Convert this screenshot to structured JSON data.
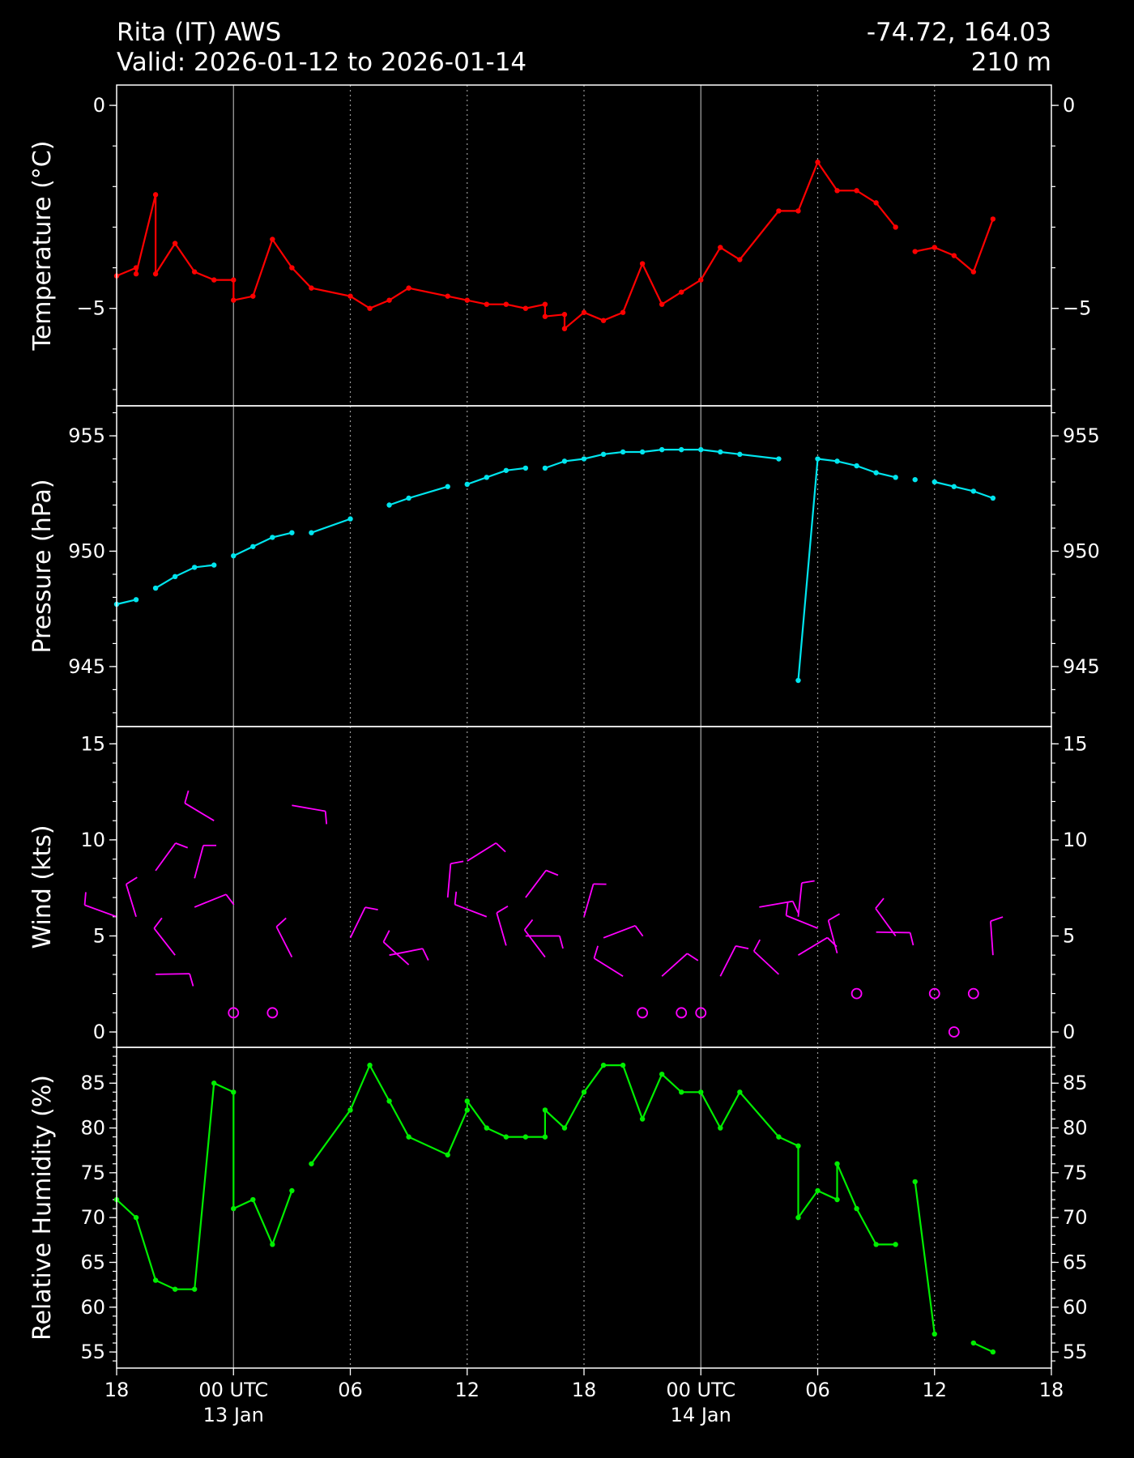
{
  "header": {
    "station": "Rita (IT) AWS",
    "valid": "Valid: 2026-01-12 to 2026-01-14",
    "coords": "-74.72, 164.03",
    "elevation": "210 m"
  },
  "colors": {
    "background": "#000000",
    "foreground": "#ffffff",
    "temperature": "#ff0000",
    "pressure": "#00e5ee",
    "wind": "#ff00ff",
    "humidity": "#00ee00",
    "solid_grid": "#aaaaaa",
    "dotted_grid": "#999999"
  },
  "chart_data": [
    {
      "id": "temperature",
      "type": "line",
      "ylabel": "Temperature ($^\\circ$C)",
      "ylim": [
        -7.4,
        0.5
      ],
      "yticks": [
        {
          "v": 0,
          "label": "0"
        },
        {
          "v": -5,
          "label": "−5"
        }
      ],
      "minor_step": 1,
      "series": [
        {
          "color": "#ff0000",
          "points": [
            [
              0,
              -4.2
            ],
            [
              1,
              -4.0
            ],
            [
              1,
              -4.15
            ],
            [
              2,
              -2.2
            ],
            [
              2,
              -4.15
            ],
            [
              3,
              -3.4
            ],
            [
              4,
              -4.1
            ],
            [
              5,
              -4.3
            ],
            [
              6,
              -4.3
            ],
            [
              6,
              -4.8
            ],
            [
              7,
              -4.7
            ],
            [
              8,
              -3.3
            ],
            [
              9,
              -4.0
            ],
            [
              10,
              -4.5
            ],
            [
              12,
              -4.7
            ],
            [
              13,
              -5.0
            ],
            [
              14,
              -4.8
            ],
            [
              15,
              -4.5
            ],
            [
              17,
              -4.7
            ],
            [
              18,
              -4.8
            ],
            [
              19,
              -4.9
            ],
            [
              20,
              -4.9
            ],
            [
              21,
              -5.0
            ],
            [
              22,
              -4.9
            ],
            [
              22,
              -5.2
            ],
            [
              23,
              -5.15
            ],
            [
              23,
              -5.5
            ],
            [
              24,
              -5.1
            ],
            [
              25,
              -5.3
            ],
            [
              26,
              -5.1
            ],
            [
              27,
              -3.9
            ],
            [
              28,
              -4.9
            ],
            [
              29,
              -4.6
            ],
            [
              30,
              -4.3
            ],
            [
              31,
              -3.5
            ],
            [
              32,
              -3.8
            ],
            [
              34,
              -2.6
            ],
            [
              35,
              -2.6
            ],
            [
              36,
              -1.4
            ],
            [
              37,
              -2.1
            ],
            [
              38,
              -2.1
            ],
            [
              39,
              -2.4
            ],
            [
              40,
              -3.0
            ]
          ]
        },
        {
          "color": "#ff0000",
          "points": [
            [
              41,
              -3.6
            ],
            [
              42,
              -3.5
            ],
            [
              43,
              -3.7
            ],
            [
              44,
              -4.1
            ],
            [
              45,
              -2.8
            ]
          ]
        }
      ]
    },
    {
      "id": "pressure",
      "type": "line",
      "ylabel": "Pressure (hPa)",
      "ylim": [
        942.4,
        956.3
      ],
      "yticks": [
        {
          "v": 945,
          "label": "945"
        },
        {
          "v": 950,
          "label": "950"
        },
        {
          "v": 955,
          "label": "955"
        }
      ],
      "minor_step": 1,
      "series": [
        {
          "color": "#00e5ee",
          "points": [
            [
              0,
              947.7
            ],
            [
              1,
              947.9
            ]
          ]
        },
        {
          "color": "#00e5ee",
          "points": [
            [
              2,
              948.4
            ],
            [
              3,
              948.9
            ],
            [
              4,
              949.3
            ],
            [
              5,
              949.4
            ]
          ]
        },
        {
          "color": "#00e5ee",
          "points": [
            [
              6,
              949.8
            ],
            [
              7,
              950.2
            ],
            [
              8,
              950.6
            ],
            [
              9,
              950.8
            ]
          ]
        },
        {
          "color": "#00e5ee",
          "points": [
            [
              10,
              950.8
            ],
            [
              12,
              951.4
            ]
          ]
        },
        {
          "color": "#00e5ee",
          "points": [
            [
              14,
              952.0
            ],
            [
              15,
              952.3
            ],
            [
              17,
              952.8
            ]
          ]
        },
        {
          "color": "#00e5ee",
          "points": [
            [
              18,
              952.9
            ],
            [
              19,
              953.2
            ],
            [
              20,
              953.5
            ],
            [
              21,
              953.6
            ]
          ]
        },
        {
          "color": "#00e5ee",
          "points": [
            [
              22,
              953.6
            ],
            [
              23,
              953.9
            ],
            [
              24,
              954.0
            ],
            [
              25,
              954.2
            ],
            [
              26,
              954.3
            ],
            [
              27,
              954.3
            ],
            [
              28,
              954.4
            ],
            [
              29,
              954.4
            ],
            [
              30,
              954.4
            ],
            [
              31,
              954.3
            ],
            [
              32,
              954.2
            ],
            [
              34,
              954.0
            ]
          ]
        },
        {
          "color": "#00e5ee",
          "points": [
            [
              35,
              944.4
            ],
            [
              36,
              954.0
            ],
            [
              37,
              953.9
            ],
            [
              38,
              953.7
            ],
            [
              39,
              953.4
            ],
            [
              40,
              953.2
            ]
          ]
        },
        {
          "color": "#00e5ee",
          "points": [
            [
              41,
              953.1
            ]
          ]
        },
        {
          "color": "#00e5ee",
          "points": [
            [
              42,
              953.0
            ],
            [
              43,
              952.8
            ],
            [
              44,
              952.6
            ],
            [
              45,
              952.3
            ]
          ]
        }
      ]
    },
    {
      "id": "wind",
      "type": "scatter",
      "ylabel": "Wind (kts)",
      "ylim": [
        -0.8,
        15.9
      ],
      "yticks": [
        {
          "v": 0,
          "label": "0"
        },
        {
          "v": 5,
          "label": "5"
        },
        {
          "v": 10,
          "label": "10"
        },
        {
          "v": 15,
          "label": "15"
        }
      ],
      "minor_step": 1,
      "color": "#ff00ff",
      "barbs": [
        {
          "x": 0,
          "y": 6
        },
        {
          "x": 1,
          "y": 6
        },
        {
          "x": 2,
          "y": 8.4
        },
        {
          "x": 2,
          "y": 3
        },
        {
          "x": 3,
          "y": 4
        },
        {
          "x": 4,
          "y": 8
        },
        {
          "x": 4,
          "y": 6.5
        },
        {
          "x": 5,
          "y": 11
        },
        {
          "x": 6,
          "y": 1,
          "calm": true
        },
        {
          "x": 8,
          "y": 1,
          "calm": true
        },
        {
          "x": 9,
          "y": 11.8
        },
        {
          "x": 9,
          "y": 3.9
        },
        {
          "x": 12,
          "y": 4.9
        },
        {
          "x": 14,
          "y": 4
        },
        {
          "x": 15,
          "y": 3.5
        },
        {
          "x": 17,
          "y": 7
        },
        {
          "x": 18,
          "y": 8.9
        },
        {
          "x": 19,
          "y": 6
        },
        {
          "x": 20,
          "y": 4.5
        },
        {
          "x": 21,
          "y": 7
        },
        {
          "x": 21,
          "y": 5
        },
        {
          "x": 22,
          "y": 3.9
        },
        {
          "x": 24,
          "y": 6
        },
        {
          "x": 25,
          "y": 4.9
        },
        {
          "x": 26,
          "y": 2.9
        },
        {
          "x": 27,
          "y": 1,
          "calm": true
        },
        {
          "x": 28,
          "y": 2.9
        },
        {
          "x": 29,
          "y": 1,
          "calm": true
        },
        {
          "x": 30,
          "y": 1,
          "calm": true
        },
        {
          "x": 31,
          "y": 2.9
        },
        {
          "x": 33,
          "y": 6.5
        },
        {
          "x": 34,
          "y": 3
        },
        {
          "x": 35,
          "y": 6
        },
        {
          "x": 35,
          "y": 4
        },
        {
          "x": 36,
          "y": 5.4
        },
        {
          "x": 37,
          "y": 4.1
        },
        {
          "x": 38,
          "y": 2,
          "calm": true
        },
        {
          "x": 39,
          "y": 5.2
        },
        {
          "x": 40,
          "y": 5
        },
        {
          "x": 42,
          "y": 2,
          "calm": true
        },
        {
          "x": 43,
          "y": 0,
          "calm": true
        },
        {
          "x": 44,
          "y": 2,
          "calm": true
        },
        {
          "x": 45,
          "y": 4
        }
      ]
    },
    {
      "id": "humidity",
      "type": "line",
      "ylabel": "Relative Humidity (%)",
      "ylim": [
        53.2,
        89.0
      ],
      "yticks": [
        {
          "v": 55,
          "label": "55"
        },
        {
          "v": 60,
          "label": "60"
        },
        {
          "v": 65,
          "label": "65"
        },
        {
          "v": 70,
          "label": "70"
        },
        {
          "v": 75,
          "label": "75"
        },
        {
          "v": 80,
          "label": "80"
        },
        {
          "v": 85,
          "label": "85"
        }
      ],
      "minor_step": 1,
      "series": [
        {
          "color": "#00ee00",
          "points": [
            [
              0,
              72
            ],
            [
              1,
              70
            ],
            [
              2,
              63
            ],
            [
              3,
              62
            ],
            [
              4,
              62
            ],
            [
              5,
              85
            ],
            [
              6,
              84
            ],
            [
              6,
              71
            ],
            [
              7,
              72
            ],
            [
              8,
              67
            ],
            [
              9,
              73
            ]
          ]
        },
        {
          "color": "#00ee00",
          "points": [
            [
              10,
              76
            ],
            [
              12,
              82
            ],
            [
              13,
              87
            ],
            [
              14,
              83
            ],
            [
              15,
              79
            ],
            [
              17,
              77
            ],
            [
              18,
              82
            ],
            [
              18,
              83
            ],
            [
              19,
              80
            ],
            [
              20,
              79
            ],
            [
              21,
              79
            ],
            [
              22,
              79
            ],
            [
              22,
              82
            ],
            [
              23,
              80
            ],
            [
              24,
              84
            ],
            [
              25,
              87
            ],
            [
              26,
              87
            ],
            [
              27,
              81
            ],
            [
              28,
              86
            ],
            [
              29,
              84
            ],
            [
              30,
              84
            ],
            [
              31,
              80
            ],
            [
              32,
              84
            ],
            [
              34,
              79
            ],
            [
              35,
              78
            ],
            [
              35,
              70
            ],
            [
              36,
              73
            ],
            [
              37,
              72
            ],
            [
              37,
              76
            ],
            [
              38,
              71
            ],
            [
              39,
              67
            ],
            [
              40,
              67
            ]
          ]
        },
        {
          "color": "#00ee00",
          "points": [
            [
              41,
              74
            ],
            [
              42,
              57
            ]
          ]
        },
        {
          "color": "#00ee00",
          "points": [
            [
              44,
              56
            ],
            [
              45,
              55
            ]
          ]
        }
      ]
    }
  ],
  "x_axis": {
    "range_hours": [
      0,
      48
    ],
    "ticks": [
      {
        "h": 0,
        "label": "18",
        "label2": ""
      },
      {
        "h": 6,
        "label": "00 UTC",
        "label2": "13 Jan"
      },
      {
        "h": 12,
        "label": "06",
        "label2": ""
      },
      {
        "h": 18,
        "label": "12",
        "label2": ""
      },
      {
        "h": 24,
        "label": "18",
        "label2": ""
      },
      {
        "h": 30,
        "label": "00 UTC",
        "label2": "14 Jan"
      },
      {
        "h": 36,
        "label": "06",
        "label2": ""
      },
      {
        "h": 42,
        "label": "12",
        "label2": ""
      },
      {
        "h": 48,
        "label": "18",
        "label2": ""
      }
    ],
    "solid_hours": [
      6,
      30
    ],
    "dotted_hours": [
      12,
      18,
      24,
      36,
      42
    ]
  }
}
